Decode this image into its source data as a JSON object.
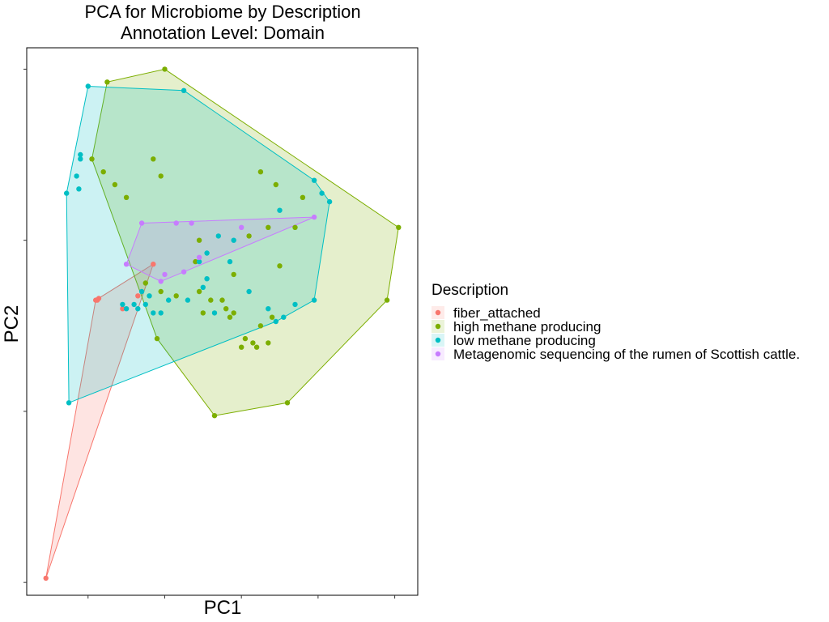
{
  "chart_data": {
    "type": "scatter",
    "title": "PCA for Microbiome by Description",
    "subtitle": "Annotation Level: Domain",
    "xlabel": "PC1",
    "ylabel": "PC2",
    "x_ticks_labeled": false,
    "y_ticks_labeled": false,
    "xlim": [
      -1.3,
      3.8
    ],
    "ylim": [
      -3.15,
      3.25
    ],
    "grid": false,
    "hulls": true,
    "legend": {
      "title": "Description",
      "position": "right"
    },
    "series": [
      {
        "name": "fiber_attached",
        "color": "#F8766D",
        "fill": "#F8766D",
        "points": [
          [
            -1.05,
            -2.95
          ],
          [
            -0.4,
            0.3
          ],
          [
            -0.38,
            0.3
          ],
          [
            -0.36,
            0.32
          ],
          [
            -0.05,
            0.2
          ],
          [
            0.15,
            0.35
          ],
          [
            0.35,
            0.72
          ]
        ]
      },
      {
        "name": "high methane producing",
        "color": "#7CAE00",
        "fill": "#7CAE00",
        "points": [
          [
            -0.25,
            2.85
          ],
          [
            0.5,
            3.0
          ],
          [
            3.55,
            1.15
          ],
          [
            3.4,
            0.3
          ],
          [
            2.1,
            -0.9
          ],
          [
            1.15,
            -1.05
          ],
          [
            -0.3,
            1.8
          ],
          [
            -0.45,
            1.95
          ],
          [
            -0.15,
            1.65
          ],
          [
            0.0,
            1.5
          ],
          [
            0.35,
            1.95
          ],
          [
            0.45,
            1.75
          ],
          [
            1.75,
            1.8
          ],
          [
            1.95,
            1.65
          ],
          [
            2.3,
            1.5
          ],
          [
            2.2,
            1.15
          ],
          [
            1.85,
            1.15
          ],
          [
            1.6,
            1.05
          ],
          [
            1.4,
            0.6
          ],
          [
            0.9,
            0.75
          ],
          [
            0.95,
            0.4
          ],
          [
            1.1,
            0.3
          ],
          [
            1.25,
            0.3
          ],
          [
            1.3,
            0.2
          ],
          [
            1.35,
            0.1
          ],
          [
            1.4,
            0.15
          ],
          [
            1.5,
            -0.25
          ],
          [
            1.55,
            -0.15
          ],
          [
            1.65,
            -0.2
          ],
          [
            1.7,
            -0.25
          ],
          [
            1.85,
            -0.2
          ],
          [
            1.75,
            0.0
          ],
          [
            1.9,
            0.1
          ],
          [
            1.0,
            0.15
          ],
          [
            0.65,
            0.35
          ],
          [
            0.45,
            0.4
          ],
          [
            0.25,
            0.5
          ],
          [
            0.95,
            1.0
          ],
          [
            2.0,
            0.7
          ],
          [
            0.4,
            -0.15
          ]
        ]
      },
      {
        "name": "low methane producing",
        "color": "#00BFC4",
        "fill": "#00BFC4",
        "points": [
          [
            -0.5,
            2.8
          ],
          [
            0.75,
            2.75
          ],
          [
            2.65,
            1.45
          ],
          [
            2.0,
            1.35
          ],
          [
            -0.6,
            2.0
          ],
          [
            -0.6,
            1.95
          ],
          [
            -0.78,
            1.55
          ],
          [
            -0.62,
            1.6
          ],
          [
            -0.65,
            1.75
          ],
          [
            2.45,
            1.7
          ],
          [
            2.55,
            1.55
          ],
          [
            1.2,
            1.05
          ],
          [
            1.4,
            1.0
          ],
          [
            1.05,
            0.85
          ],
          [
            0.95,
            0.75
          ],
          [
            1.35,
            0.75
          ],
          [
            2.45,
            0.3
          ],
          [
            2.2,
            0.25
          ],
          [
            1.85,
            0.2
          ],
          [
            1.95,
            0.05
          ],
          [
            2.05,
            0.1
          ],
          [
            1.15,
            0.15
          ],
          [
            0.55,
            0.3
          ],
          [
            0.3,
            0.35
          ],
          [
            0.25,
            0.25
          ],
          [
            0.15,
            0.2
          ],
          [
            0.1,
            0.25
          ],
          [
            0.2,
            0.4
          ],
          [
            0.0,
            0.2
          ],
          [
            -0.05,
            0.25
          ],
          [
            0.35,
            0.15
          ],
          [
            0.45,
            0.15
          ],
          [
            1.0,
            0.45
          ],
          [
            1.05,
            0.55
          ],
          [
            -0.75,
            -0.9
          ],
          [
            1.6,
            0.4
          ],
          [
            0.8,
            0.3
          ]
        ]
      },
      {
        "name": "Metagenomic sequencing of the rumen of Scottish cattle.",
        "color": "#C77CFF",
        "fill": "#C77CFF",
        "points": [
          [
            0.2,
            1.2
          ],
          [
            2.45,
            1.27
          ],
          [
            0.0,
            0.72
          ],
          [
            0.45,
            0.52
          ],
          [
            0.95,
            0.8
          ],
          [
            0.65,
            1.2
          ],
          [
            0.85,
            1.2
          ],
          [
            1.5,
            1.15
          ],
          [
            0.75,
            0.63
          ],
          [
            0.5,
            0.6
          ]
        ]
      }
    ]
  }
}
